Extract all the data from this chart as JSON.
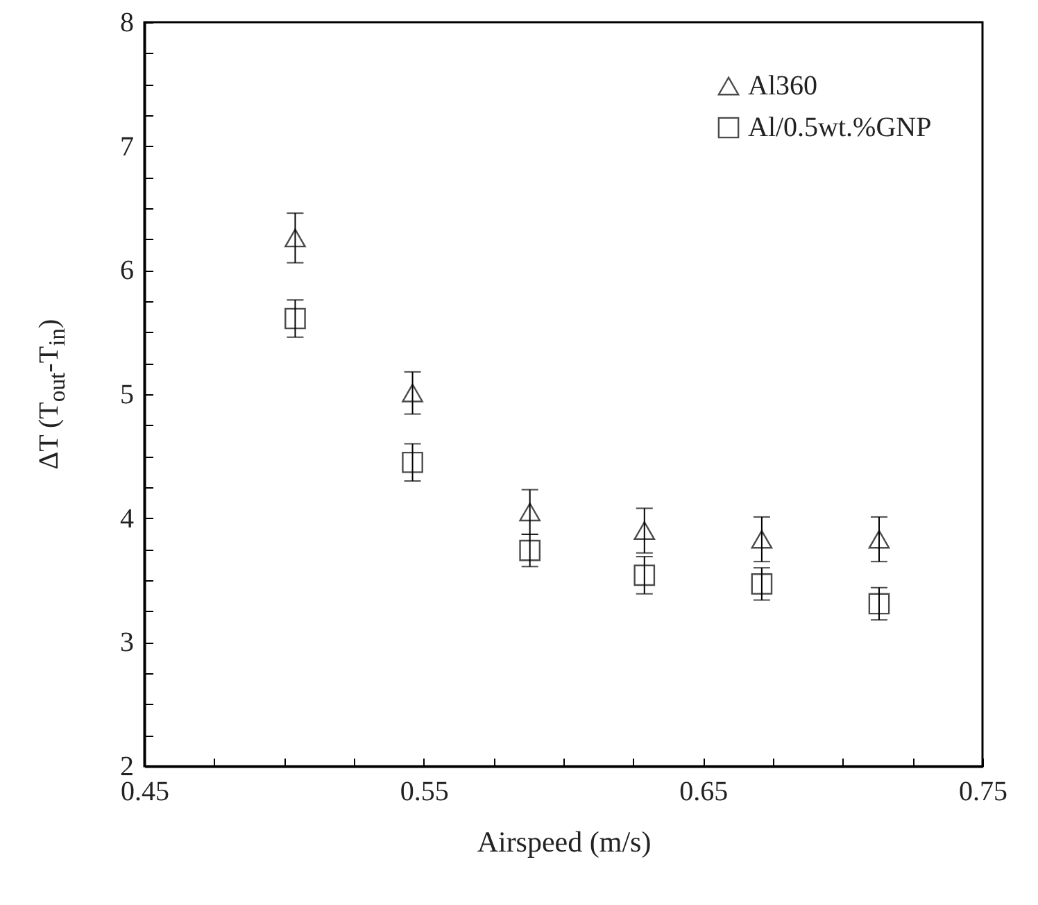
{
  "chart_data": {
    "type": "scatter",
    "xlabel": "Airspeed (m/s)",
    "ylabel": "ΔT (T$_{out}$-T$_{in}$)",
    "x": [
      0.504,
      0.546,
      0.588,
      0.629,
      0.671,
      0.713
    ],
    "series": [
      {
        "name": "Al360",
        "color": "#000000",
        "marker": "triangle",
        "values": [
          6.26,
          5.01,
          4.05,
          3.9,
          3.83,
          3.83
        ],
        "errors": [
          0.2,
          0.17,
          0.18,
          0.18,
          0.18,
          0.18
        ]
      },
      {
        "name": "Al/0.5wt.%GNP",
        "color": "#000000",
        "marker": "square",
        "values": [
          5.61,
          4.45,
          3.74,
          3.54,
          3.47,
          3.31
        ],
        "errors": [
          0.15,
          0.15,
          0.13,
          0.15,
          0.13,
          0.13
        ]
      }
    ],
    "xlim": [
      0.45,
      0.75
    ],
    "xticks": [
      0.45,
      {
        "value": 0.475,
        "label": null
      },
      0.55,
      {
        "value": 0.5,
        "label": null
      },
      {
        "value": 0.525,
        "label": null
      },
      {
        "value": 0.575,
        "label": null
      },
      {
        "value": 0.6,
        "label": null
      },
      {
        "value": 0.625,
        "label": null
      },
      0.65,
      {
        "value": 0.675,
        "label": null
      },
      {
        "value": 0.7,
        "label": null
      },
      {
        "value": 0.725,
        "label": null
      },
      0.75
    ],
    "ylim": [
      2,
      8
    ],
    "yticks": [
      2,
      {
        "value": 2.25,
        "label": null
      },
      {
        "value": 2.5,
        "label": null
      },
      {
        "value": 2.75,
        "label": null
      },
      3,
      {
        "value": 3.25,
        "label": null
      },
      {
        "value": 3.5,
        "label": null
      },
      {
        "value": 3.75,
        "label": null
      },
      4,
      {
        "value": 4.25,
        "label": null
      },
      {
        "value": 4.5,
        "label": null
      },
      {
        "value": 4.75,
        "label": null
      },
      5,
      {
        "value": 5.25,
        "label": null
      },
      {
        "value": 5.5,
        "label": null
      },
      {
        "value": 5.75,
        "label": null
      },
      6,
      {
        "value": 6.25,
        "label": null
      },
      {
        "value": 6.5,
        "label": null
      },
      {
        "value": 6.75,
        "label": null
      },
      7,
      {
        "value": 7.25,
        "label": null
      },
      {
        "value": 7.5,
        "label": null
      },
      {
        "value": 7.75,
        "label": null
      },
      8
    ],
    "grid": false,
    "legend": "top right"
  }
}
